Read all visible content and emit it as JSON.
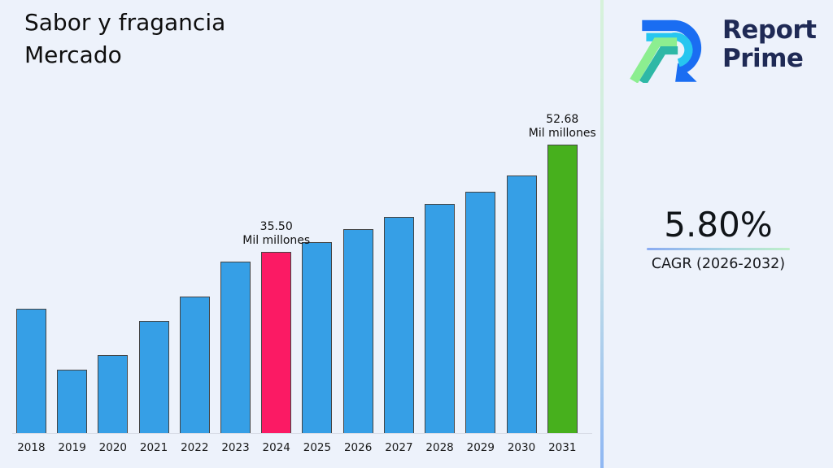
{
  "title": {
    "line1": "Sabor y fragancia",
    "line2": "Mercado"
  },
  "logo": {
    "line1": "Report",
    "line2": "Prime"
  },
  "cagr": {
    "value": "5.80%",
    "label": "CAGR (2026-2032)"
  },
  "chart_data": {
    "type": "bar",
    "title": "Sabor y fragancia Mercado",
    "unit": "Mil millones",
    "categories": [
      "2018",
      "2019",
      "2020",
      "2021",
      "2022",
      "2023",
      "2024",
      "2025",
      "2026",
      "2027",
      "2028",
      "2029",
      "2030",
      "2031"
    ],
    "values": [
      26.4,
      16.6,
      18.9,
      24.4,
      28.3,
      33.9,
      35.5,
      37.1,
      39.1,
      41.1,
      43.2,
      45.2,
      47.8,
      52.68
    ],
    "bar_colors": [
      "default",
      "default",
      "default",
      "default",
      "default",
      "default",
      "highlight",
      "default",
      "default",
      "default",
      "default",
      "default",
      "default",
      "final"
    ],
    "colors": {
      "default": "#369fe6",
      "highlight": "#fb1a64",
      "final": "#47b01d",
      "edge": "#444444"
    },
    "annotations": [
      {
        "category": "2024",
        "line1": "35.50",
        "line2": "Mil millones"
      },
      {
        "category": "2031",
        "line1": "52.68",
        "line2": "Mil millones"
      }
    ],
    "xlabel": "",
    "ylabel": "",
    "ylim": [
      6.4,
      59
    ],
    "grid": false,
    "legend": false
  }
}
